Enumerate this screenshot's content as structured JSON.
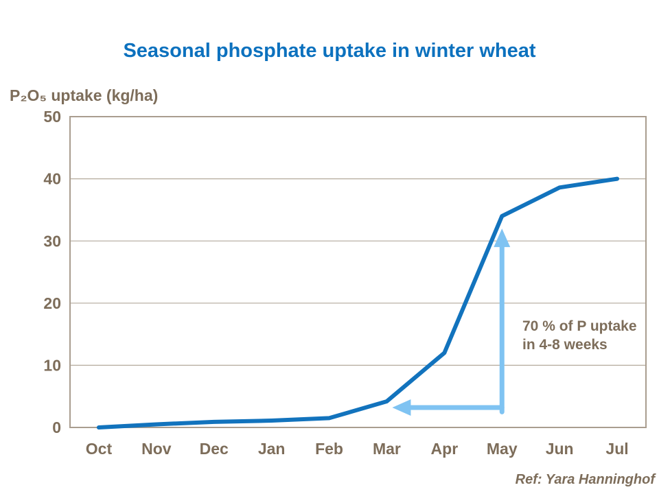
{
  "title": "Seasonal phosphate uptake in winter wheat",
  "reference": "Ref: Yara Hanninghof",
  "colors": {
    "title_blue": "#0c71be",
    "curve_blue": "#1273bd",
    "arrow_light_blue": "#7fc3f2",
    "text_brown": "#7d6d5a",
    "frame": "#a99d8f",
    "gridline": "#b3a99b"
  },
  "chart_data": {
    "type": "line",
    "title": "Seasonal phosphate uptake in winter wheat",
    "ylabel": "P₂O₅ uptake (kg/ha)",
    "xlabel": "",
    "categories": [
      "Oct",
      "Nov",
      "Dec",
      "Jan",
      "Feb",
      "Mar",
      "Apr",
      "May",
      "Jun",
      "Jul"
    ],
    "series": [
      {
        "name": "P2O5 uptake (kg/ha)",
        "values": [
          0,
          0.5,
          0.9,
          1.1,
          1.5,
          4.2,
          12,
          34,
          38.6,
          40
        ]
      }
    ],
    "ylim": [
      0,
      50
    ],
    "yticks": [
      0,
      10,
      20,
      30,
      40,
      50
    ],
    "grid": true,
    "legend": "none",
    "annotation": {
      "text": "70 % of P uptake in 4-8 weeks",
      "vertical_arrow": {
        "x_category": "May",
        "from_value": 2.5,
        "to_value": 32
      },
      "horizontal_arrow": {
        "y_value": 3.2,
        "from_category": "May",
        "to_category": "Mar"
      }
    }
  }
}
